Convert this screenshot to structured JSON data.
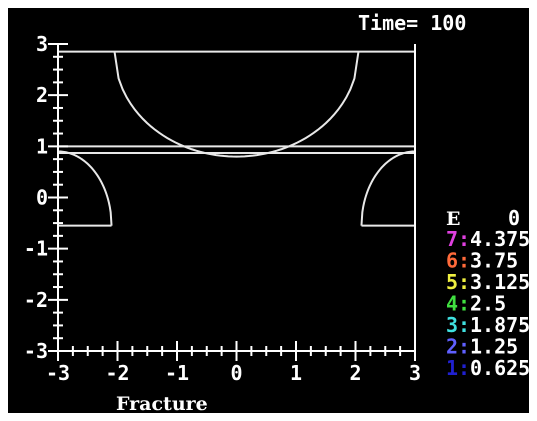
{
  "chart_data": {
    "type": "line",
    "title": "Time= 100",
    "xlabel": "Fracture",
    "ylabel": "",
    "xlim": [
      -3,
      3
    ],
    "ylim": [
      -3,
      3
    ],
    "x_ticks": [
      "-3",
      "-2",
      "-1",
      "0",
      "1",
      "2",
      "3"
    ],
    "y_ticks": [
      "-3",
      "-2",
      "-1",
      "0",
      "1",
      "2",
      "3"
    ],
    "grid": false,
    "legend_position": "bottom-right",
    "legend": {
      "header_left": "E",
      "header_right": "0",
      "entries": [
        {
          "id": "7:",
          "value": "4.375",
          "color": "#e040e0"
        },
        {
          "id": "6:",
          "value": "3.75",
          "color": "#ff6a3a"
        },
        {
          "id": "5:",
          "value": "3.125",
          "color": "#f0f040"
        },
        {
          "id": "4:",
          "value": "2.5",
          "color": "#40e040"
        },
        {
          "id": "3:",
          "value": "1.875",
          "color": "#40e0e0"
        },
        {
          "id": "2:",
          "value": "1.25",
          "color": "#6060ff"
        },
        {
          "id": "1:",
          "value": "0.625",
          "color": "#2020d0"
        }
      ]
    },
    "series": [
      {
        "kind": "hline",
        "y": 2.85,
        "x": [
          -3,
          3
        ]
      },
      {
        "kind": "arc",
        "x_center": 0,
        "y_center": 2.85,
        "half_width": 2.05,
        "depth": 2.05
      },
      {
        "kind": "hline",
        "y": 1.0,
        "x": [
          -3,
          3
        ]
      },
      {
        "kind": "hline",
        "y": 0.87,
        "x": [
          -3,
          3
        ]
      },
      {
        "kind": "arc",
        "x_center": -3,
        "y_center": -0.55,
        "half_width": 0.9,
        "depth": 1.45,
        "side": "right"
      },
      {
        "kind": "arc",
        "x_center": 3,
        "y_center": -0.55,
        "half_width": 0.9,
        "depth": 1.45,
        "side": "left"
      },
      {
        "kind": "hline",
        "y": -0.55,
        "x": [
          -3,
          -2.1
        ]
      },
      {
        "kind": "hline",
        "y": -0.55,
        "x": [
          2.1,
          3
        ]
      }
    ],
    "line_color": "#e8e8e8"
  },
  "window": {
    "background": "#000000",
    "frame_color": "#ffffff"
  }
}
